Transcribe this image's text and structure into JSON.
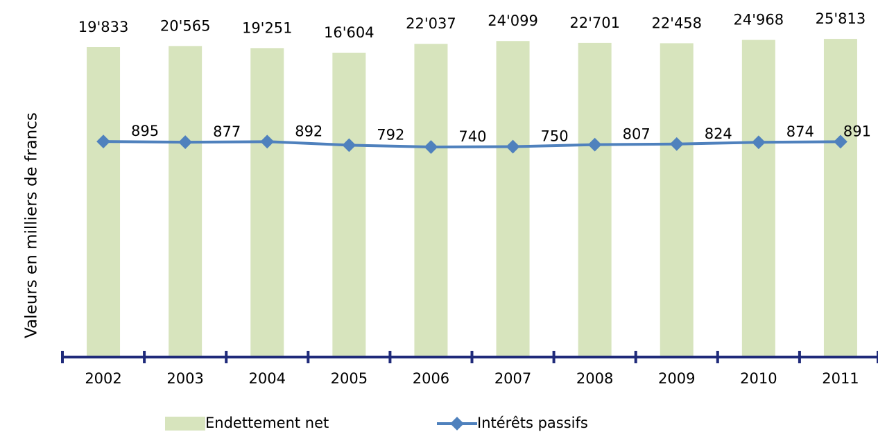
{
  "chart_data": {
    "type": "bar_line",
    "y_axis_label": "Valeurs en milliers de francs",
    "categories": [
      "2002",
      "2003",
      "2004",
      "2005",
      "2006",
      "2007",
      "2008",
      "2009",
      "2010",
      "2011"
    ],
    "log_scale": true,
    "ylim": [
      1,
      80000
    ],
    "y2lim": [
      -5200,
      4800
    ],
    "legend": "bottom",
    "series": [
      {
        "name": "Endettement net",
        "type": "bar",
        "color": "#d7e4bd",
        "values": [
          19833,
          20565,
          19251,
          16604,
          22037,
          24099,
          22701,
          22458,
          24968,
          25813
        ],
        "value_labels": [
          "19'833",
          "20'565",
          "19'251",
          "16'604",
          "22'037",
          "24'099",
          "22'701",
          "22'458",
          "24'968",
          "25'813"
        ]
      },
      {
        "name": "Intérêts passifs",
        "type": "line",
        "axis": "y2",
        "color": "#4f81bd",
        "values": [
          895,
          877,
          892,
          792,
          740,
          750,
          807,
          824,
          874,
          891
        ]
      }
    ]
  }
}
